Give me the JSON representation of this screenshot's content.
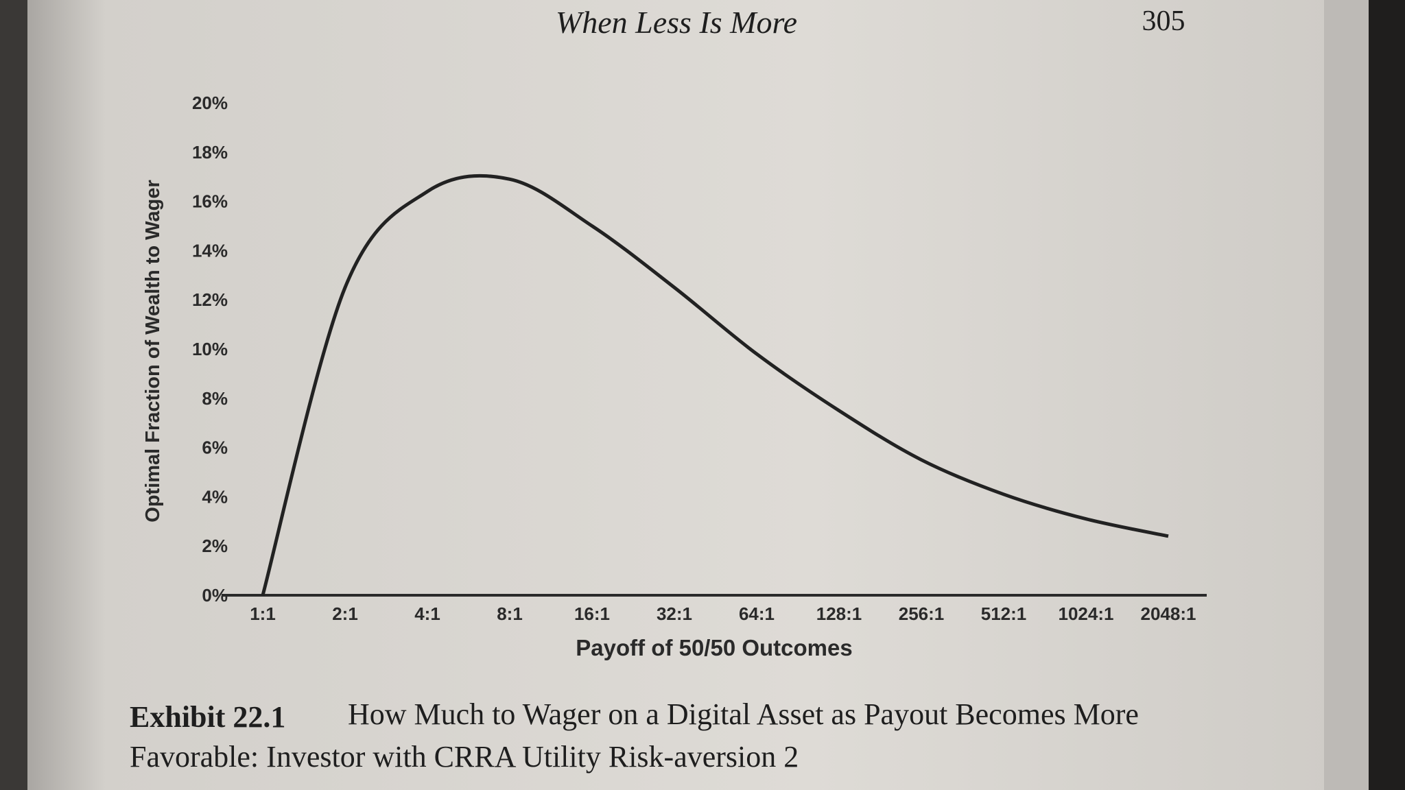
{
  "page": {
    "running_head": "When Less Is More",
    "page_number": "305"
  },
  "chart_data": {
    "type": "line",
    "x_label": "Payoff of 50/50 Outcomes",
    "y_label": "Optimal Fraction of Wealth to Wager",
    "categories": [
      "1:1",
      "2:1",
      "4:1",
      "8:1",
      "16:1",
      "32:1",
      "64:1",
      "128:1",
      "256:1",
      "512:1",
      "1024:1",
      "2048:1"
    ],
    "values": [
      0,
      12.5,
      16.4,
      16.9,
      15.0,
      12.5,
      9.8,
      7.5,
      5.5,
      4.1,
      3.1,
      2.4
    ],
    "color": "#222222",
    "ylim": [
      0,
      20
    ],
    "yticks": [
      {
        "value": 0,
        "label": "0%"
      },
      {
        "value": 2,
        "label": "2%"
      },
      {
        "value": 4,
        "label": "4%"
      },
      {
        "value": 6,
        "label": "6%"
      },
      {
        "value": 8,
        "label": "8%"
      },
      {
        "value": 10,
        "label": "10%"
      },
      {
        "value": 12,
        "label": "12%"
      },
      {
        "value": 14,
        "label": "14%"
      },
      {
        "value": 16,
        "label": "16%"
      },
      {
        "value": 18,
        "label": "18%"
      },
      {
        "value": 20,
        "label": "20%"
      }
    ],
    "grid": false
  },
  "caption": {
    "label": "Exhibit 22.1",
    "lines": [
      "How Much to Wager on a Digital Asset as Payout Becomes More",
      "Favorable: Investor with CRRA Utility Risk-aversion 2"
    ]
  }
}
